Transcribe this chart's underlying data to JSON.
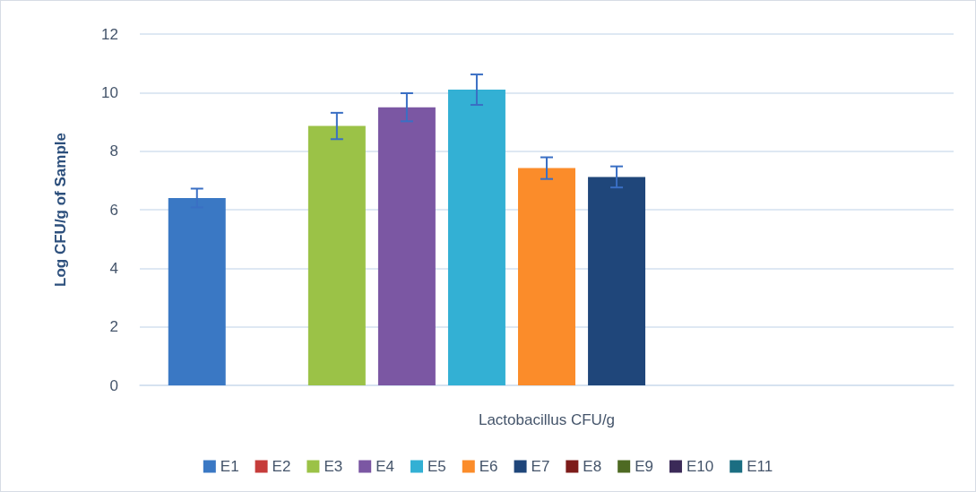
{
  "chart_data": {
    "type": "bar",
    "xlabel": "Lactobacillus CFU/g",
    "ylabel": "Log CFU/g of Sample",
    "categories": [
      null
    ],
    "series": [
      {
        "name": "E1",
        "color": "#3a78c4",
        "values": [
          6.4
        ],
        "errors": [
          0.32
        ]
      },
      {
        "name": "E2",
        "color": "#c63c3a",
        "values": [
          0
        ],
        "errors": [
          null
        ]
      },
      {
        "name": "E3",
        "color": "#9bc247",
        "values": [
          8.86
        ],
        "errors": [
          0.45
        ]
      },
      {
        "name": "E4",
        "color": "#7b57a3",
        "values": [
          9.5
        ],
        "errors": [
          0.48
        ]
      },
      {
        "name": "E5",
        "color": "#33b0d4",
        "values": [
          10.1
        ],
        "errors": [
          0.52
        ]
      },
      {
        "name": "E6",
        "color": "#fb8c2a",
        "values": [
          7.42
        ],
        "errors": [
          0.37
        ]
      },
      {
        "name": "E7",
        "color": "#1f467a",
        "values": [
          7.12
        ],
        "errors": [
          0.36
        ]
      },
      {
        "name": "E8",
        "color": "#7d1c1a",
        "values": [
          0
        ],
        "errors": [
          null
        ]
      },
      {
        "name": "E9",
        "color": "#4e6a23",
        "values": [
          0
        ],
        "errors": [
          null
        ]
      },
      {
        "name": "E10",
        "color": "#3b2a58",
        "values": [
          0
        ],
        "errors": [
          null
        ]
      },
      {
        "name": "E11",
        "color": "#1b6e82",
        "values": [
          0
        ],
        "errors": [
          null
        ]
      }
    ],
    "ylim": [
      0,
      12
    ],
    "yticks": [
      0,
      2,
      4,
      6,
      8,
      10,
      12
    ],
    "grid": "y",
    "legend": "bottom"
  }
}
